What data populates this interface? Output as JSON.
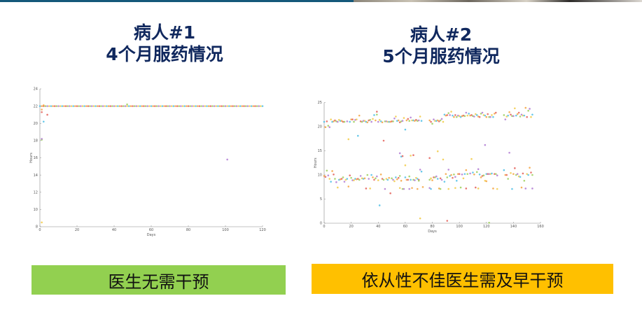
{
  "patients": [
    {
      "title_line1": "病人#1",
      "title_line2": "4个月服药情况",
      "verdict": "医生无需干预",
      "verdict_color": "#92d050"
    },
    {
      "title_line1": "病人#2",
      "title_line2": "5个月服药情况",
      "verdict": "依从性不佳医生需及早干预",
      "verdict_color": "#ffc000"
    }
  ],
  "point_colors": [
    "#4fbfe6",
    "#f4a340",
    "#e4625a",
    "#9ccf5a",
    "#b27bd4",
    "#f2cb48"
  ],
  "chart_data": [
    {
      "type": "scatter",
      "xlabel": "Days",
      "ylabel": "Hours",
      "xlim": [
        0,
        120
      ],
      "ylim": [
        8,
        24
      ],
      "xticks": [
        0,
        20,
        40,
        60,
        80,
        100,
        120
      ],
      "yticks": [
        8,
        10,
        12,
        14,
        16,
        18,
        20,
        22,
        24
      ],
      "grid": false,
      "baseline": {
        "y": 22,
        "x_from": 0,
        "x_to": 120
      },
      "points": [
        [
          1,
          21.6
        ],
        [
          1,
          21.3
        ],
        [
          1,
          18.1
        ],
        [
          1,
          18.2
        ],
        [
          1,
          8.5
        ],
        [
          2,
          20.2
        ],
        [
          2,
          22.1
        ],
        [
          4,
          21
        ],
        [
          47,
          22.2
        ],
        [
          101,
          15.8
        ]
      ]
    },
    {
      "type": "scatter",
      "xlabel": "Days",
      "ylabel": "Hours",
      "xlim": [
        0,
        160
      ],
      "ylim": [
        0,
        25
      ],
      "xticks": [
        0,
        20,
        40,
        60,
        80,
        100,
        120,
        140,
        160
      ],
      "yticks": [
        0,
        5,
        10,
        15,
        20,
        25
      ],
      "grid": false,
      "points": [
        [
          0,
          21
        ],
        [
          1,
          19.9
        ],
        [
          2,
          21.1
        ],
        [
          3,
          20.2
        ],
        [
          4,
          19.9
        ],
        [
          5,
          21.5
        ],
        [
          6,
          21
        ],
        [
          7,
          21.1
        ],
        [
          8,
          21.3
        ],
        [
          9,
          21.1
        ],
        [
          10,
          21
        ],
        [
          11,
          21.4
        ],
        [
          12,
          21.2
        ],
        [
          13,
          21.2
        ],
        [
          14,
          21
        ],
        [
          15,
          21
        ],
        [
          17,
          21.1
        ],
        [
          18,
          17.4
        ],
        [
          19,
          21
        ],
        [
          20,
          21.5
        ],
        [
          21,
          21.5
        ],
        [
          22,
          21
        ],
        [
          23,
          21.4
        ],
        [
          24,
          21.5
        ],
        [
          25,
          18.1
        ],
        [
          26,
          22.3
        ],
        [
          27,
          21.1
        ],
        [
          28,
          21
        ],
        [
          29,
          21.2
        ],
        [
          30,
          21.2
        ],
        [
          31,
          21
        ],
        [
          32,
          20.9
        ],
        [
          33,
          21.3
        ],
        [
          34,
          21.4
        ],
        [
          35,
          21
        ],
        [
          36,
          21.6
        ],
        [
          37,
          22.4
        ],
        [
          38,
          21.3
        ],
        [
          39,
          23.1
        ],
        [
          39,
          22.5
        ],
        [
          40,
          21
        ],
        [
          41,
          21.4
        ],
        [
          42,
          21.1
        ],
        [
          43,
          20.9
        ],
        [
          44,
          17.1
        ],
        [
          45,
          21.1
        ],
        [
          46,
          21.1
        ],
        [
          47,
          21
        ],
        [
          48,
          21
        ],
        [
          49,
          21
        ],
        [
          50,
          21.1
        ],
        [
          51,
          21.1
        ],
        [
          52,
          21.7
        ],
        [
          53,
          22.1
        ],
        [
          54,
          21.2
        ],
        [
          55,
          21.3
        ],
        [
          56,
          20.9
        ],
        [
          57,
          21.1
        ],
        [
          58,
          21.2
        ],
        [
          59,
          21.8
        ],
        [
          60,
          19.4
        ],
        [
          61,
          21.3
        ],
        [
          62,
          21.6
        ],
        [
          63,
          21.2
        ],
        [
          64,
          21.9
        ],
        [
          65,
          21.3
        ],
        [
          66,
          21.3
        ],
        [
          67,
          21.2
        ],
        [
          68,
          21.4
        ],
        [
          69,
          21.2
        ],
        [
          70,
          21.3
        ],
        [
          71,
          22.1
        ],
        [
          72,
          21.2
        ],
        [
          78,
          21.3
        ],
        [
          79,
          21
        ],
        [
          80,
          20.6
        ],
        [
          81,
          21.5
        ],
        [
          82,
          21.2
        ],
        [
          83,
          21.2
        ],
        [
          84,
          21.3
        ],
        [
          85,
          21.1
        ],
        [
          86,
          21.3
        ],
        [
          87,
          21.6
        ],
        [
          88,
          21
        ],
        [
          89,
          22.5
        ],
        [
          90,
          22.3
        ],
        [
          91,
          22.4
        ],
        [
          92,
          22.8
        ],
        [
          93,
          22.4
        ],
        [
          94,
          23.1
        ],
        [
          95,
          22.3
        ],
        [
          96,
          22
        ],
        [
          97,
          22.4
        ],
        [
          98,
          22
        ],
        [
          99,
          22.3
        ],
        [
          100,
          22.2
        ],
        [
          101,
          22
        ],
        [
          102,
          22.2
        ],
        [
          103,
          22.3
        ],
        [
          104,
          22.2
        ],
        [
          105,
          22.9
        ],
        [
          106,
          22.3
        ],
        [
          107,
          22.7
        ],
        [
          108,
          22.3
        ],
        [
          109,
          22.4
        ],
        [
          110,
          22.2
        ],
        [
          111,
          22.1
        ],
        [
          112,
          22.6
        ],
        [
          113,
          22.4
        ],
        [
          114,
          22.1
        ],
        [
          115,
          22
        ],
        [
          116,
          22.7
        ],
        [
          117,
          22.9
        ],
        [
          118,
          22.4
        ],
        [
          119,
          22.3
        ],
        [
          120,
          22
        ],
        [
          121,
          22.6
        ],
        [
          122,
          22
        ],
        [
          123,
          22
        ],
        [
          124,
          22.4
        ],
        [
          125,
          22
        ],
        [
          126,
          22.7
        ],
        [
          127,
          22.9
        ],
        [
          133,
          22.4
        ],
        [
          134,
          21.5
        ],
        [
          135,
          22.1
        ],
        [
          136,
          22.3
        ],
        [
          137,
          23
        ],
        [
          138,
          22.5
        ],
        [
          139,
          22.2
        ],
        [
          140,
          22.2
        ],
        [
          141,
          23.8
        ],
        [
          142,
          22.3
        ],
        [
          143,
          22.6
        ],
        [
          144,
          22.9
        ],
        [
          145,
          22.1
        ],
        [
          146,
          22.5
        ],
        [
          147,
          22.3
        ],
        [
          148,
          22.3
        ],
        [
          149,
          23.9
        ],
        [
          150,
          22
        ],
        [
          151,
          23.3
        ],
        [
          152,
          23.7
        ],
        [
          153,
          22
        ],
        [
          154,
          22.5
        ],
        [
          0,
          9.8
        ],
        [
          1,
          9.6
        ],
        [
          2,
          10.9
        ],
        [
          3,
          9.9
        ],
        [
          4,
          9.2
        ],
        [
          5,
          8.6
        ],
        [
          6,
          10.8
        ],
        [
          7,
          10.1
        ],
        [
          8,
          9.2
        ],
        [
          9,
          8.5
        ],
        [
          10,
          7.4
        ],
        [
          11,
          9
        ],
        [
          12,
          9.1
        ],
        [
          13,
          9.2
        ],
        [
          14,
          9.5
        ],
        [
          15,
          8.6
        ],
        [
          16,
          9
        ],
        [
          17,
          9.2
        ],
        [
          18,
          7.6
        ],
        [
          19,
          9.9
        ],
        [
          20,
          9.4
        ],
        [
          21,
          8.9
        ],
        [
          22,
          8.9
        ],
        [
          23,
          9.2
        ],
        [
          24,
          9.1
        ],
        [
          25,
          9.2
        ],
        [
          26,
          9
        ],
        [
          27,
          9.8
        ],
        [
          28,
          9.3
        ],
        [
          29,
          9.2
        ],
        [
          30,
          9.3
        ],
        [
          31,
          7.2
        ],
        [
          32,
          10
        ],
        [
          33,
          9.2
        ],
        [
          34,
          7.2
        ],
        [
          35,
          10
        ],
        [
          36,
          9.5
        ],
        [
          37,
          9
        ],
        [
          38,
          9.3
        ],
        [
          39,
          9.7
        ],
        [
          40,
          8.9
        ],
        [
          41,
          3.7
        ],
        [
          42,
          10.1
        ],
        [
          43,
          9.2
        ],
        [
          44,
          9
        ],
        [
          45,
          7.1
        ],
        [
          46,
          9.2
        ],
        [
          47,
          9
        ],
        [
          48,
          9.4
        ],
        [
          49,
          6.2
        ],
        [
          50,
          9.3
        ],
        [
          51,
          9
        ],
        [
          52,
          8.7
        ],
        [
          53,
          9.5
        ],
        [
          54,
          9.1
        ],
        [
          55,
          9.4
        ],
        [
          56,
          9.8
        ],
        [
          56,
          14.5
        ],
        [
          56,
          7.3
        ],
        [
          57,
          13.8
        ],
        [
          57,
          8.8
        ],
        [
          58,
          13.9
        ],
        [
          58,
          7.1
        ],
        [
          59,
          7.1
        ],
        [
          60,
          12
        ],
        [
          60,
          9.5
        ],
        [
          61,
          9
        ],
        [
          62,
          9
        ],
        [
          63,
          9.7
        ],
        [
          63,
          7.1
        ],
        [
          64,
          14
        ],
        [
          64,
          9
        ],
        [
          65,
          7.3
        ],
        [
          66,
          14.1
        ],
        [
          66,
          9
        ],
        [
          67,
          8.9
        ],
        [
          68,
          9.4
        ],
        [
          69,
          9.2
        ],
        [
          69,
          7.1
        ],
        [
          70,
          9
        ],
        [
          70,
          8.8
        ],
        [
          71,
          11.1
        ],
        [
          71,
          1
        ],
        [
          72,
          10.7
        ],
        [
          73,
          7.5
        ],
        [
          78,
          13.5
        ],
        [
          78,
          9
        ],
        [
          78,
          7.3
        ],
        [
          79,
          9.3
        ],
        [
          79,
          7.1
        ],
        [
          80,
          8.9
        ],
        [
          81,
          9.5
        ],
        [
          82,
          9.5
        ],
        [
          83,
          9.7
        ],
        [
          84,
          14.9
        ],
        [
          84,
          9.2
        ],
        [
          85,
          7.2
        ],
        [
          86,
          9.3
        ],
        [
          86,
          7.1
        ],
        [
          87,
          9
        ],
        [
          88,
          13.2
        ],
        [
          89,
          8.6
        ],
        [
          90,
          10.2
        ],
        [
          91,
          0.5
        ],
        [
          91,
          9.5
        ],
        [
          92,
          11.1
        ],
        [
          92,
          7.1
        ],
        [
          93,
          9.8
        ],
        [
          94,
          10
        ],
        [
          95,
          9.4
        ],
        [
          96,
          10.1
        ],
        [
          97,
          9.6
        ],
        [
          97,
          7.3
        ],
        [
          98,
          8.8
        ],
        [
          99,
          10.2
        ],
        [
          100,
          10.2
        ],
        [
          101,
          7.4
        ],
        [
          102,
          10.1
        ],
        [
          103,
          9.3
        ],
        [
          104,
          10.2
        ],
        [
          105,
          11
        ],
        [
          105,
          7.2
        ],
        [
          106,
          10.2
        ],
        [
          108,
          10.3
        ],
        [
          109,
          13.3
        ],
        [
          110,
          10.5
        ],
        [
          111,
          10.1
        ],
        [
          112,
          7.4
        ],
        [
          113,
          10.6
        ],
        [
          114,
          11.2
        ],
        [
          114,
          7.2
        ],
        [
          115,
          10.1
        ],
        [
          116,
          9.5
        ],
        [
          117,
          9.8
        ],
        [
          118,
          9.9
        ],
        [
          119,
          16.2
        ],
        [
          119,
          8.8
        ],
        [
          120,
          10.2
        ],
        [
          120,
          8.7
        ],
        [
          121,
          10.2
        ],
        [
          122,
          0.1
        ],
        [
          122,
          10.2
        ],
        [
          123,
          10.2
        ],
        [
          124,
          10.3
        ],
        [
          125,
          7.2
        ],
        [
          126,
          10.2
        ],
        [
          127,
          10.2
        ],
        [
          128,
          9.9
        ],
        [
          128,
          7.1
        ],
        [
          133,
          11
        ],
        [
          134,
          10
        ],
        [
          135,
          10
        ],
        [
          136,
          9.2
        ],
        [
          137,
          14.6
        ],
        [
          138,
          10.4
        ],
        [
          139,
          7.1
        ],
        [
          140,
          10.2
        ],
        [
          141,
          11.4
        ],
        [
          142,
          10
        ],
        [
          143,
          10.2
        ],
        [
          144,
          9.7
        ],
        [
          145,
          9.6
        ],
        [
          146,
          7.4
        ],
        [
          147,
          10.3
        ],
        [
          148,
          8.8
        ],
        [
          149,
          7.2
        ],
        [
          150,
          10.2
        ],
        [
          151,
          10
        ],
        [
          152,
          11.5
        ],
        [
          153,
          10.5
        ],
        [
          154,
          10
        ],
        [
          154,
          7.2
        ]
      ]
    }
  ]
}
